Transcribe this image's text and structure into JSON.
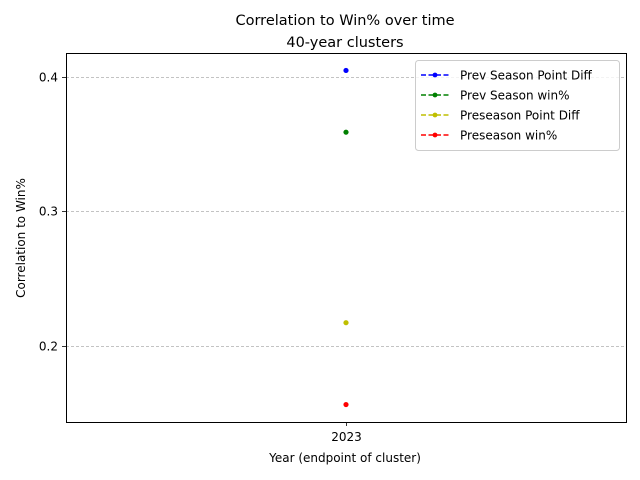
{
  "chart_data": {
    "type": "scatter",
    "title": "Correlation to Win% over time",
    "subtitle": "40-year clusters",
    "xlabel": "Year (endpoint of cluster)",
    "ylabel": "Correlation to Win%",
    "x": [
      "2023"
    ],
    "ylim": [
      0.143,
      0.418
    ],
    "yticks": [
      "0.2",
      "0.3",
      "0.4"
    ],
    "grid": "horizontal dashed",
    "legend_position": "top-right",
    "series": [
      {
        "name": "Prev Season Point Diff",
        "color": "#0000ff",
        "values": [
          0.405
        ]
      },
      {
        "name": "Prev Season win%",
        "color": "#008000",
        "values": [
          0.359
        ]
      },
      {
        "name": "Preseason Point Diff",
        "color": "#bfbf00",
        "values": [
          0.217
        ]
      },
      {
        "name": "Preseason win%",
        "color": "#ff0000",
        "values": [
          0.156
        ]
      }
    ]
  }
}
